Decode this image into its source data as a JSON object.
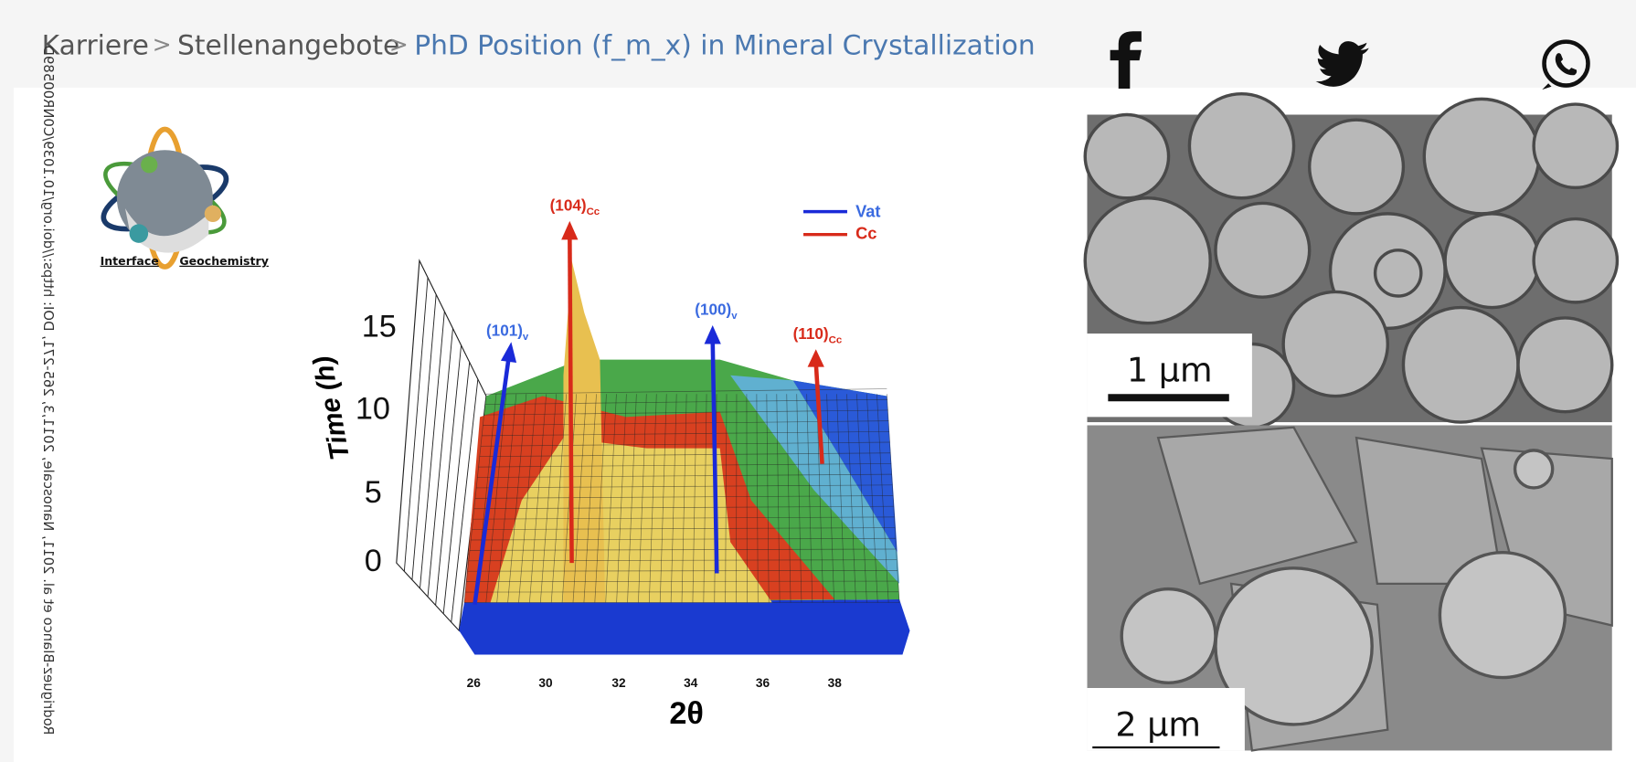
{
  "breadcrumb": {
    "items": [
      "Karriere",
      "Stellenangebote",
      "PhD Position (f_m_x) in Mineral Crystallization"
    ],
    "separator": ">"
  },
  "figure": {
    "citation": "Rodriguez-Blanco et al. 2011, Nanoscale, 2011,3, 265-271, DOI: https://doi.org/10.1039/C0NR00589D",
    "logo": {
      "left": "Interface",
      "right": "Geochemistry"
    },
    "plot": {
      "y_axis_label": "Time (h)",
      "x_axis_label": "2θ",
      "y_ticks": [
        15,
        10,
        5,
        0
      ],
      "x_ticks": [
        26,
        30,
        32,
        34,
        36,
        38
      ],
      "legend": [
        "Vat",
        "Cc"
      ],
      "peaks": [
        {
          "label": "(104)",
          "sub": "Cc"
        },
        {
          "label": "(101)",
          "sub": "v"
        },
        {
          "label": "(100)",
          "sub": "v"
        },
        {
          "label": "(110)",
          "sub": "Cc"
        }
      ]
    },
    "sem": {
      "top_scale": "1 µm",
      "bottom_scale": "2 µm"
    }
  }
}
